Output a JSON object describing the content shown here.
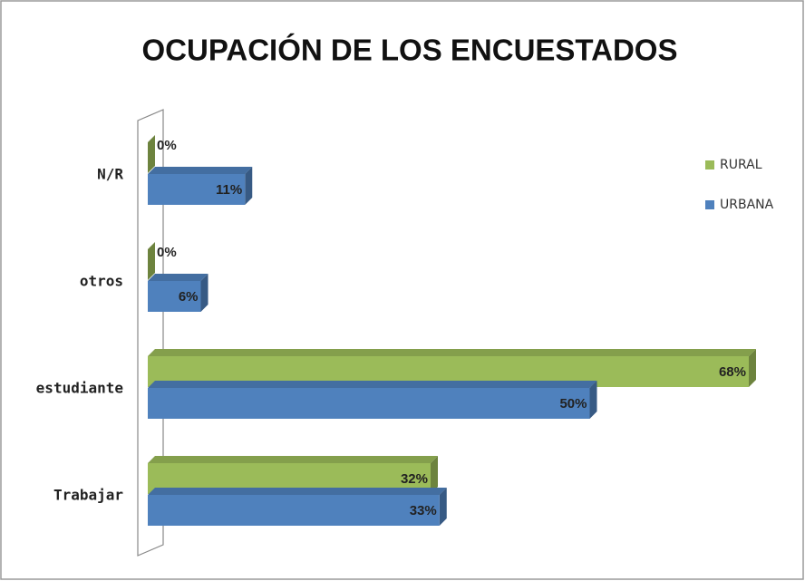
{
  "chart_data": {
    "type": "bar",
    "orientation": "horizontal",
    "title": "OCUPACIÓN DE LOS ENCUESTADOS",
    "categories": [
      "N/R",
      "otros",
      "estudiante",
      "Trabajar"
    ],
    "series": [
      {
        "name": "RURAL",
        "color": "#9bbb59",
        "values": [
          0,
          0,
          68,
          32
        ],
        "value_labels": [
          "0%",
          "0%",
          "68%",
          "32%"
        ]
      },
      {
        "name": "URBANA",
        "color": "#4f81bd",
        "values": [
          11,
          6,
          50,
          33
        ],
        "value_labels": [
          "11%",
          "6%",
          "50%",
          "33%"
        ]
      }
    ],
    "legend": "right"
  }
}
